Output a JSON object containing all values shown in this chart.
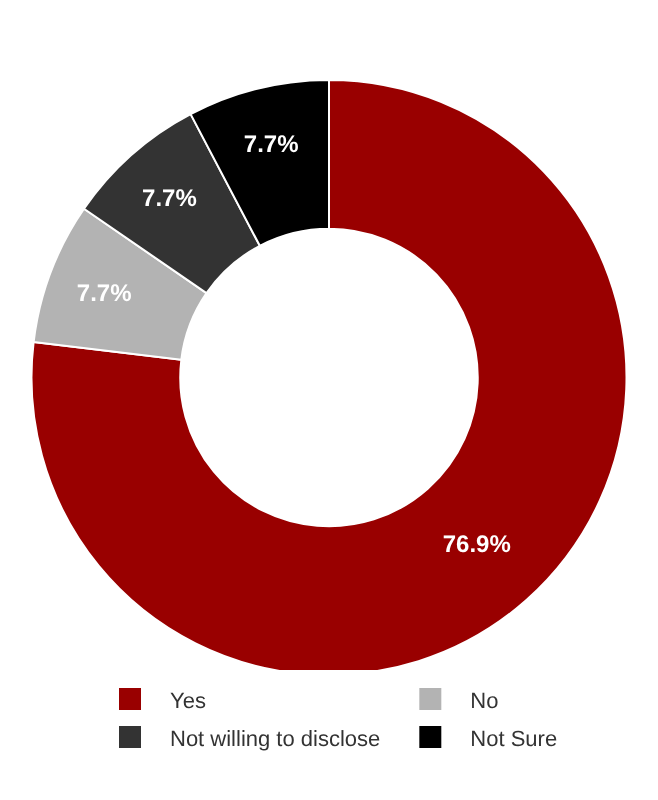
{
  "chart_data": {
    "type": "donut",
    "categories": [
      "Yes",
      "No",
      "Not willing to disclose",
      "Not Sure"
    ],
    "values": [
      76.9,
      7.7,
      7.7,
      7.7
    ],
    "value_labels": [
      "76.9%",
      "7.7%",
      "7.7%",
      "7.7%"
    ],
    "colors": [
      "#990000",
      "#b3b3b3",
      "#333333",
      "#000000"
    ],
    "legend": "bottom"
  }
}
